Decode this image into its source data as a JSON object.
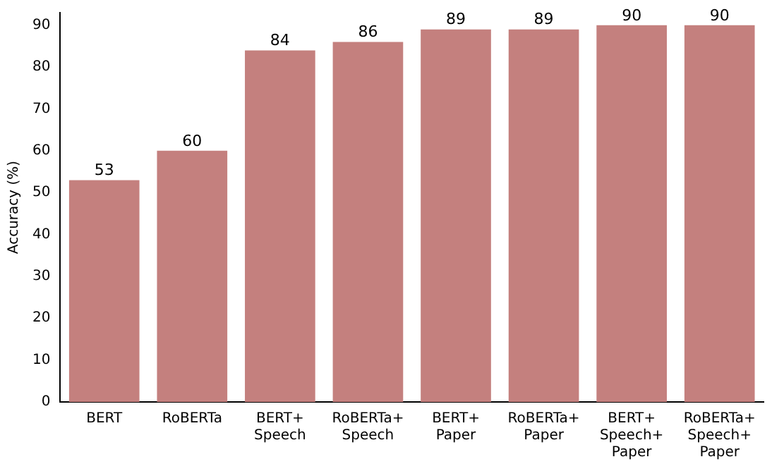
{
  "chart_data": {
    "type": "bar",
    "ylabel": "Accuracy (%)",
    "categories": [
      "BERT",
      "RoBERTa",
      "BERT+\nSpeech",
      "RoBERTa+\nSpeech",
      "BERT+\nPaper",
      "RoBERTa+\nPaper",
      "BERT+\nSpeech+\nPaper",
      "RoBERTa+\nSpeech+\nPaper"
    ],
    "values": [
      53,
      60,
      84,
      86,
      89,
      89,
      90,
      90
    ],
    "color": "#c4807e",
    "ylim": [
      0,
      93
    ],
    "yticks": [
      0,
      10,
      20,
      30,
      40,
      50,
      60,
      70,
      80,
      90
    ],
    "data_labels": true,
    "legend": false
  }
}
